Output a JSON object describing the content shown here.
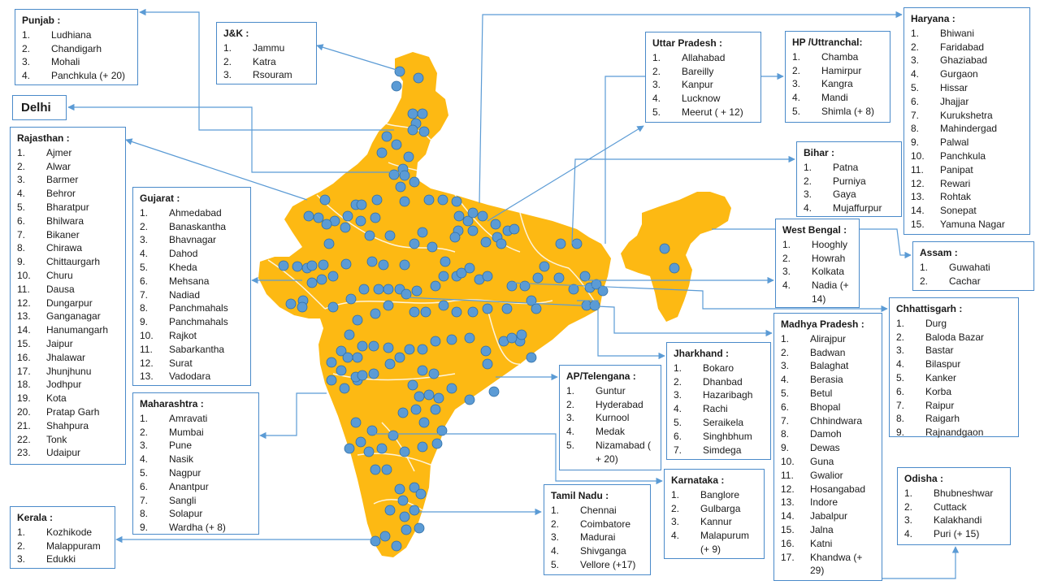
{
  "colors": {
    "land": "#FDB913",
    "border": "#ffffff",
    "marker": "#5B9BD5",
    "marker_stroke": "#2E6DA4",
    "leader": "#5B9BD5",
    "box_border": "#4a8ac9"
  },
  "regions": {
    "punjab": {
      "title": "Punjab :",
      "items": [
        {
          "n": "1.",
          "t": "Ludhiana"
        },
        {
          "n": "2.",
          "t": "Chandigarh"
        },
        {
          "n": "3.",
          "t": "Mohali"
        },
        {
          "n": "4.",
          "t": "Panchkula (+ 20)"
        }
      ]
    },
    "jk": {
      "title": "J&K :",
      "items": [
        {
          "n": "1.",
          "t": "Jammu"
        },
        {
          "n": "2.",
          "t": "Katra"
        },
        {
          "n": "3.",
          "t": "Rsouram"
        }
      ]
    },
    "delhi": {
      "title": "Delhi",
      "items": []
    },
    "rajasthan": {
      "title": "Rajasthan :",
      "items": [
        {
          "n": "1.",
          "t": "Ajmer"
        },
        {
          "n": "2.",
          "t": "Alwar"
        },
        {
          "n": "3.",
          "t": "Barmer"
        },
        {
          "n": "4.",
          "t": "Behror"
        },
        {
          "n": "5.",
          "t": "Bharatpur"
        },
        {
          "n": "6.",
          "t": "Bhilwara"
        },
        {
          "n": "7.",
          "t": "Bikaner"
        },
        {
          "n": "8.",
          "t": "Chirawa"
        },
        {
          "n": "9.",
          "t": "Chittaurgarh"
        },
        {
          "n": "10.",
          "t": "Churu"
        },
        {
          "n": "11.",
          "t": "Dausa"
        },
        {
          "n": "12.",
          "t": "Dungarpur"
        },
        {
          "n": "13.",
          "t": "Ganganagar"
        },
        {
          "n": "14.",
          "t": "Hanumangarh"
        },
        {
          "n": "15.",
          "t": "Jaipur"
        },
        {
          "n": "16.",
          "t": "Jhalawar"
        },
        {
          "n": "17.",
          "t": "Jhunjhunu"
        },
        {
          "n": "18.",
          "t": "Jodhpur"
        },
        {
          "n": "19.",
          "t": "Kota"
        },
        {
          "n": "20.",
          "t": "Pratap Garh"
        },
        {
          "n": "21.",
          "t": "Shahpura"
        },
        {
          "n": "22.",
          "t": "Tonk"
        },
        {
          "n": "23.",
          "t": "Udaipur"
        }
      ]
    },
    "gujarat": {
      "title": "Gujarat :",
      "items": [
        {
          "n": "1.",
          "t": "Ahmedabad"
        },
        {
          "n": "2.",
          "t": "Banaskantha"
        },
        {
          "n": "3.",
          "t": "Bhavnagar"
        },
        {
          "n": "4.",
          "t": "Dahod"
        },
        {
          "n": "5.",
          "t": "Kheda"
        },
        {
          "n": "6.",
          "t": "Mehsana"
        },
        {
          "n": "7.",
          "t": "Nadiad"
        },
        {
          "n": "8.",
          "t": "Panchmahals"
        },
        {
          "n": "9.",
          "t": "Panchmahals"
        },
        {
          "n": "10.",
          "t": "Rajkot"
        },
        {
          "n": "11.",
          "t": "Sabarkantha"
        },
        {
          "n": "12.",
          "t": "Surat"
        },
        {
          "n": "13.",
          "t": "Vadodara"
        }
      ]
    },
    "maharashtra": {
      "title": "Maharashtra :",
      "items": [
        {
          "n": "1.",
          "t": "Amravati"
        },
        {
          "n": "2.",
          "t": "Mumbai"
        },
        {
          "n": "3.",
          "t": "Pune"
        },
        {
          "n": "4.",
          "t": "Nasik"
        },
        {
          "n": "5.",
          "t": "Nagpur"
        },
        {
          "n": "6.",
          "t": "Anantpur"
        },
        {
          "n": "7.",
          "t": "Sangli"
        },
        {
          "n": "8.",
          "t": "Solapur"
        },
        {
          "n": "9.",
          "t": "Wardha (+ 8)"
        }
      ]
    },
    "kerala": {
      "title": "Kerala :",
      "items": [
        {
          "n": "1.",
          "t": "Kozhikode"
        },
        {
          "n": "2.",
          "t": "Malappuram"
        },
        {
          "n": "3.",
          "t": "Edukki"
        }
      ]
    },
    "up": {
      "title": "Uttar Pradesh :",
      "items": [
        {
          "n": "1.",
          "t": "Allahabad"
        },
        {
          "n": "2.",
          "t": "Bareilly"
        },
        {
          "n": "3.",
          "t": "Kanpur"
        },
        {
          "n": "4.",
          "t": "Lucknow"
        },
        {
          "n": "5.",
          "t": "Meerut ( + 12)"
        }
      ]
    },
    "hp": {
      "title": "HP /Uttranchal:",
      "items": [
        {
          "n": "1.",
          "t": "Chamba"
        },
        {
          "n": "2.",
          "t": "Hamirpur"
        },
        {
          "n": "3.",
          "t": "Kangra"
        },
        {
          "n": "4.",
          "t": "Mandi"
        },
        {
          "n": "5.",
          "t": "Shimla (+ 8)"
        }
      ]
    },
    "haryana": {
      "title": "Haryana :",
      "items": [
        {
          "n": "1.",
          "t": "Bhiwani"
        },
        {
          "n": "2.",
          "t": "Faridabad"
        },
        {
          "n": "3.",
          "t": "Ghaziabad"
        },
        {
          "n": "4.",
          "t": "Gurgaon"
        },
        {
          "n": "5.",
          "t": "Hissar"
        },
        {
          "n": "6.",
          "t": "Jhajjar"
        },
        {
          "n": "7.",
          "t": "Kurukshetra"
        },
        {
          "n": "8.",
          "t": "Mahindergad"
        },
        {
          "n": "9.",
          "t": "Palwal"
        },
        {
          "n": "10.",
          "t": "Panchkula"
        },
        {
          "n": "11.",
          "t": "Panipat"
        },
        {
          "n": "12.",
          "t": "Rewari"
        },
        {
          "n": "13.",
          "t": " Rohtak"
        },
        {
          "n": "14.",
          "t": "Sonepat"
        },
        {
          "n": "15.",
          "t": "Yamuna Nagar"
        }
      ]
    },
    "bihar": {
      "title": "Bihar :",
      "items": [
        {
          "n": "1.",
          "t": "Patna"
        },
        {
          "n": "2.",
          "t": "Purniya"
        },
        {
          "n": "3.",
          "t": "Gaya"
        },
        {
          "n": "4.",
          "t": "Mujaffurpur"
        }
      ]
    },
    "westbengal": {
      "title": "West Bengal :",
      "items": [
        {
          "n": "1.",
          "t": "Hooghly"
        },
        {
          "n": "2.",
          "t": "Howrah"
        },
        {
          "n": "3.",
          "t": "Kolkata"
        },
        {
          "n": "4.",
          "t": "Nadia (+ 14)"
        }
      ]
    },
    "assam": {
      "title": "Assam :",
      "items": [
        {
          "n": "1.",
          "t": "Guwahati"
        },
        {
          "n": "2.",
          "t": "Cachar"
        }
      ]
    },
    "chhattisgarh": {
      "title": "Chhattisgarh :",
      "items": [
        {
          "n": "1.",
          "t": "Durg"
        },
        {
          "n": "2.",
          "t": "Baloda Bazar"
        },
        {
          "n": "3.",
          "t": "Bastar"
        },
        {
          "n": "4.",
          "t": "Bilaspur"
        },
        {
          "n": "5.",
          "t": "Kanker"
        },
        {
          "n": "6.",
          "t": "Korba"
        },
        {
          "n": "7.",
          "t": "Raipur"
        },
        {
          "n": "8.",
          "t": "Raigarh"
        },
        {
          "n": "9.",
          "t": "Rajnandgaon"
        }
      ]
    },
    "mp": {
      "title": "Madhya Pradesh :",
      "items": [
        {
          "n": "1.",
          "t": "Alirajpur"
        },
        {
          "n": "2.",
          "t": "Badwan"
        },
        {
          "n": "3.",
          "t": "Balaghat"
        },
        {
          "n": "4.",
          "t": "Berasia"
        },
        {
          "n": "5.",
          "t": "Betul"
        },
        {
          "n": "6.",
          "t": "Bhopal"
        },
        {
          "n": "7.",
          "t": "Chhindwara"
        },
        {
          "n": "8.",
          "t": "Damoh"
        },
        {
          "n": "9.",
          "t": "Dewas"
        },
        {
          "n": "10.",
          "t": "Guna"
        },
        {
          "n": "11.",
          "t": "Gwalior"
        },
        {
          "n": "12.",
          "t": "Hosangabad"
        },
        {
          "n": "13.",
          "t": "Indore"
        },
        {
          "n": "14.",
          "t": "Jabalpur"
        },
        {
          "n": "15.",
          "t": "Jalna"
        },
        {
          "n": "16.",
          "t": "Katni"
        },
        {
          "n": "17.",
          "t": "Khandwa (+ 29)"
        }
      ]
    },
    "jharkhand": {
      "title": "Jharkhand :",
      "items": [
        {
          "n": "1.",
          "t": "Bokaro"
        },
        {
          "n": "2.",
          "t": "Dhanbad"
        },
        {
          "n": "3.",
          "t": "Hazaribagh"
        },
        {
          "n": "4.",
          "t": "Rachi"
        },
        {
          "n": "5.",
          "t": "Seraikela"
        },
        {
          "n": "6.",
          "t": "Singhbhum"
        },
        {
          "n": "7.",
          "t": "Simdega"
        }
      ]
    },
    "ap": {
      "title": "AP/Telengana :",
      "items": [
        {
          "n": "1.",
          "t": "Guntur"
        },
        {
          "n": "2.",
          "t": "Hyderabad"
        },
        {
          "n": "3.",
          "t": "Kurnool"
        },
        {
          "n": "4.",
          "t": "Medak"
        },
        {
          "n": "5.",
          "t": "Nizamabad ( + 20)"
        }
      ]
    },
    "karnataka": {
      "title": "Karnataka :",
      "items": [
        {
          "n": "1.",
          "t": "Banglore"
        },
        {
          "n": "2.",
          "t": "Gulbarga"
        },
        {
          "n": "3.",
          "t": "Kannur"
        },
        {
          "n": "4.",
          "t": "Malapurum (+ 9)"
        }
      ]
    },
    "tamilnadu": {
      "title": "Tamil Nadu :",
      "items": [
        {
          "n": "1.",
          "t": "Chennai"
        },
        {
          "n": "2.",
          "t": "Coimbatore"
        },
        {
          "n": "3.",
          "t": "Madurai"
        },
        {
          "n": "4.",
          "t": "Shivganga"
        },
        {
          "n": "5.",
          "t": "Vellore (+17)"
        }
      ]
    },
    "odisha": {
      "title": "Odisha :",
      "items": [
        {
          "n": "1.",
          "t": "Bhubneshwar"
        },
        {
          "n": "2.",
          "t": "Cuttack"
        },
        {
          "n": "3.",
          "t": "Kalakhandi"
        },
        {
          "n": "4.",
          "t": "Puri (+ 15)"
        }
      ]
    }
  }
}
